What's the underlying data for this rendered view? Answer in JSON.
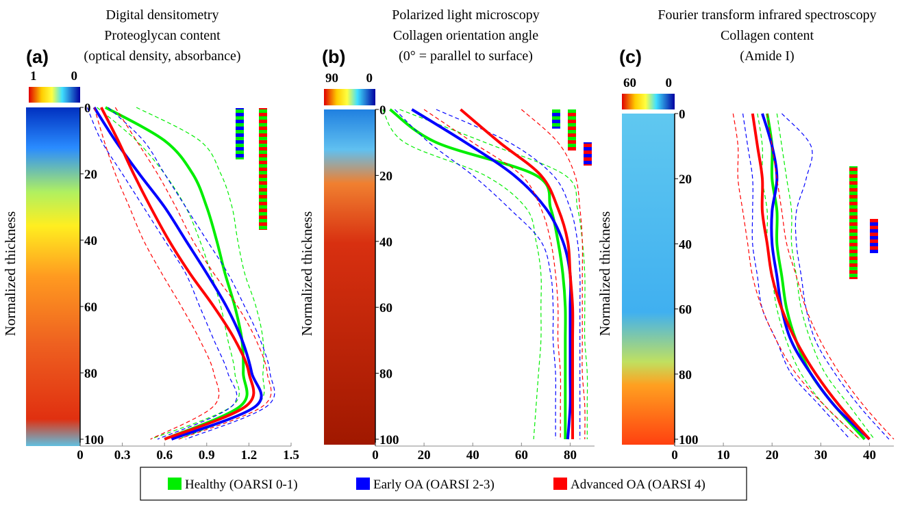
{
  "chart_data": [
    {
      "type": "line",
      "orientation": "vertical-depth",
      "title_lines": [
        "Digital densitometry",
        "Proteoglycan content",
        "(optical density, absorbance)"
      ],
      "panel_label": "(a)",
      "axis_label": "Normalized thickness",
      "colorbar_range": [
        1,
        0
      ],
      "x": [
        0,
        10,
        20,
        30,
        40,
        50,
        60,
        70,
        80,
        90,
        100
      ],
      "xlim": [
        0,
        100
      ],
      "xticks": [
        0,
        20,
        40,
        60,
        80,
        100
      ],
      "ylim": [
        0,
        1.5
      ],
      "yticks": [
        0,
        0.3,
        0.6,
        0.9,
        1.2,
        1.5
      ],
      "series": [
        {
          "name": "Healthy (OARSI 0-1)",
          "color": "#00ee00",
          "values": [
            0.18,
            0.6,
            0.8,
            0.9,
            0.97,
            1.03,
            1.1,
            1.15,
            1.16,
            1.14,
            0.6
          ],
          "lower": [
            0.12,
            0.4,
            0.6,
            0.75,
            0.85,
            0.93,
            1.0,
            1.05,
            1.1,
            1.08,
            0.5
          ],
          "upper": [
            0.4,
            0.85,
            1.0,
            1.08,
            1.12,
            1.17,
            1.25,
            1.3,
            1.3,
            1.25,
            0.7
          ]
        },
        {
          "name": "Early OA (OARSI 2-3)",
          "color": "#0000ff",
          "values": [
            0.1,
            0.25,
            0.42,
            0.6,
            0.75,
            0.9,
            1.04,
            1.15,
            1.22,
            1.25,
            0.65
          ],
          "lower": [
            0.05,
            0.15,
            0.3,
            0.45,
            0.6,
            0.75,
            0.85,
            0.95,
            1.05,
            1.08,
            0.55
          ],
          "upper": [
            0.2,
            0.45,
            0.6,
            0.75,
            0.9,
            1.05,
            1.17,
            1.28,
            1.35,
            1.33,
            0.75
          ]
        },
        {
          "name": "Advanced OA (OARSI 4)",
          "color": "#ff0000",
          "values": [
            0.15,
            0.27,
            0.38,
            0.5,
            0.63,
            0.78,
            0.95,
            1.1,
            1.2,
            1.18,
            0.6
          ],
          "lower": [
            0.1,
            0.17,
            0.25,
            0.35,
            0.45,
            0.58,
            0.72,
            0.85,
            0.95,
            0.95,
            0.5
          ],
          "upper": [
            0.25,
            0.4,
            0.55,
            0.68,
            0.8,
            0.95,
            1.12,
            1.25,
            1.33,
            1.3,
            0.7
          ]
        }
      ]
    },
    {
      "type": "line",
      "orientation": "vertical-depth",
      "title_lines": [
        "Polarized light microscopy",
        "Collagen orientation angle",
        "(0° = parallel to surface)"
      ],
      "panel_label": "(b)",
      "axis_label": "Normalized thickness",
      "colorbar_range": [
        90,
        0
      ],
      "x": [
        0,
        10,
        20,
        30,
        40,
        50,
        60,
        70,
        80,
        90,
        100
      ],
      "xlim": [
        0,
        100
      ],
      "xticks": [
        0,
        20,
        40,
        60,
        80,
        100
      ],
      "ylim": [
        0,
        90
      ],
      "yticks": [
        0,
        20,
        40,
        60,
        80
      ],
      "series": [
        {
          "color": "#00ee00",
          "values": [
            6,
            25,
            66,
            72,
            75,
            77,
            78,
            78,
            78,
            78,
            78
          ],
          "lower": [
            3,
            12,
            45,
            62,
            66,
            68,
            68,
            68,
            67,
            66,
            65
          ],
          "upper": [
            10,
            45,
            78,
            83,
            85,
            86,
            86,
            86,
            87,
            87,
            87
          ]
        },
        {
          "color": "#0000ff",
          "values": [
            15,
            37,
            57,
            70,
            77,
            80,
            80,
            80,
            80,
            80,
            79
          ],
          "lower": [
            8,
            22,
            40,
            55,
            68,
            72,
            73,
            73,
            74,
            74,
            74
          ],
          "upper": [
            25,
            55,
            73,
            80,
            83,
            84,
            84,
            84,
            84,
            84,
            84
          ]
        },
        {
          "color": "#ff0000",
          "values": [
            35,
            51,
            68,
            75,
            79,
            80,
            81,
            81,
            81,
            81,
            81
          ],
          "lower": [
            20,
            40,
            60,
            68,
            72,
            74,
            75,
            75,
            76,
            76,
            76
          ],
          "upper": [
            60,
            75,
            82,
            84,
            85,
            85,
            85,
            85,
            85,
            86,
            86
          ]
        }
      ]
    },
    {
      "type": "line",
      "orientation": "vertical-depth",
      "title_lines": [
        "Fourier transform infrared spectroscopy",
        "Collagen content",
        "(Amide I)"
      ],
      "panel_label": "(c)",
      "axis_label": "Normalized thickness",
      "colorbar_range": [
        60,
        0
      ],
      "x": [
        0,
        10,
        20,
        30,
        40,
        50,
        60,
        70,
        80,
        90,
        100
      ],
      "xlim": [
        0,
        100
      ],
      "xticks": [
        0,
        20,
        40,
        60,
        80,
        100
      ],
      "ylim": [
        0,
        45
      ],
      "yticks": [
        0,
        10,
        20,
        30,
        40
      ],
      "series": [
        {
          "color": "#00ee00",
          "values": [
            19,
            20,
            20,
            21,
            21,
            22,
            23,
            25,
            28,
            33,
            39
          ],
          "lower": [
            17,
            18,
            18,
            19,
            19,
            20,
            21,
            23,
            26,
            31,
            38
          ],
          "upper": [
            21,
            22,
            23,
            24,
            24,
            25,
            26,
            28,
            31,
            36,
            41
          ]
        },
        {
          "color": "#0000ff",
          "values": [
            18,
            20,
            21,
            20,
            20,
            21,
            22,
            24,
            28,
            33,
            40
          ],
          "lower": [
            14,
            15,
            16,
            16,
            16,
            17,
            18,
            21,
            24,
            30,
            36
          ],
          "upper": [
            22,
            28,
            27,
            25,
            25,
            26,
            27,
            29,
            33,
            38,
            44
          ]
        },
        {
          "color": "#ff0000",
          "values": [
            16,
            17,
            18,
            18,
            19,
            20,
            22,
            25,
            29,
            34,
            40
          ],
          "lower": [
            12,
            13,
            13,
            14,
            15,
            16,
            18,
            21,
            25,
            31,
            38
          ],
          "upper": [
            19,
            20,
            21,
            22,
            23,
            25,
            27,
            30,
            34,
            39,
            45
          ]
        }
      ]
    }
  ]
}
